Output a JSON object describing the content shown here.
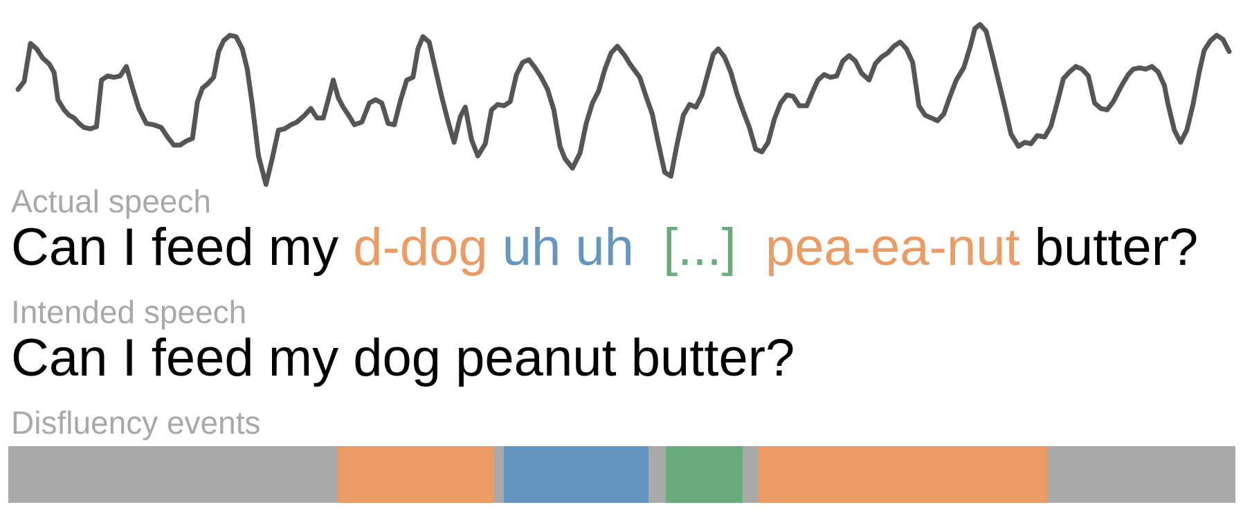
{
  "colors": {
    "waveform": "#555555",
    "label": "#a8a8a8",
    "text": "#000000",
    "repetition": "#eb9c66",
    "filler": "#6596bf",
    "pause": "#6aab7c",
    "fluent": "#a9a9a9"
  },
  "labels": {
    "actual": "Actual speech",
    "intended": "Intended speech",
    "events": "Disfluency events"
  },
  "actual_speech": [
    {
      "text": "Can I feed my ",
      "type": "fluent"
    },
    {
      "text": "d-dog",
      "type": "repetition"
    },
    {
      "text": " ",
      "type": "fluent"
    },
    {
      "text": "uh uh",
      "type": "filler"
    },
    {
      "text": "  ",
      "type": "fluent"
    },
    {
      "text": "[...]",
      "type": "pause"
    },
    {
      "text": "  ",
      "type": "fluent"
    },
    {
      "text": "pea-ea-nut",
      "type": "repetition"
    },
    {
      "text": " butter?",
      "type": "fluent"
    }
  ],
  "intended_speech": "Can I feed my dog peanut butter?",
  "events": [
    {
      "type": "fluent",
      "share": 0.268
    },
    {
      "type": "repetition",
      "share": 0.128
    },
    {
      "type": "fluent",
      "share": 0.008
    },
    {
      "type": "filler",
      "share": 0.118
    },
    {
      "type": "fluent",
      "share": 0.014
    },
    {
      "type": "pause",
      "share": 0.063
    },
    {
      "type": "fluent",
      "share": 0.013
    },
    {
      "type": "repetition",
      "share": 0.235
    },
    {
      "type": "fluent",
      "share": 0.153
    }
  ]
}
